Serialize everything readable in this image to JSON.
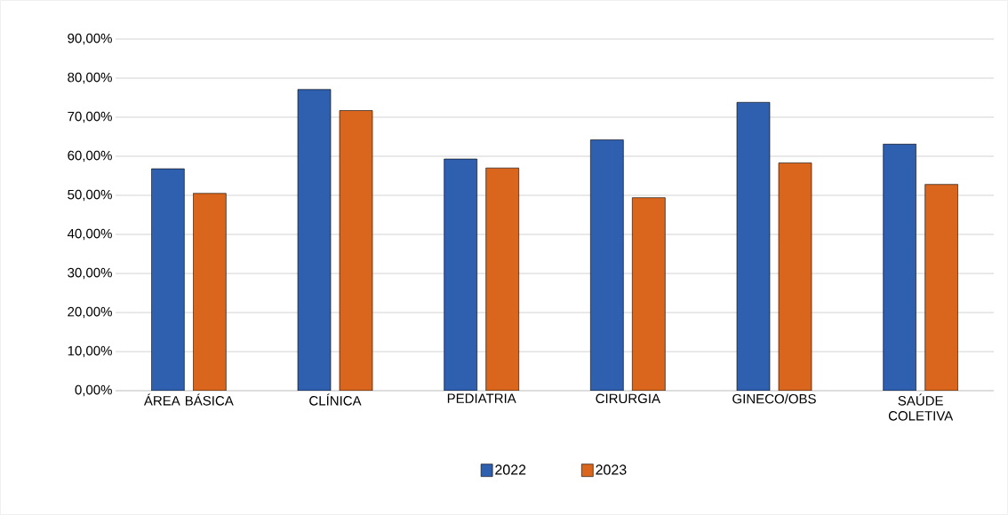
{
  "chart_data": {
    "type": "bar",
    "categories": [
      "ÁREA BÁSICA",
      "CLÍNICA",
      "PEDIATRIA",
      "CIRURGIA",
      "GINECO/OBS",
      "SAÚDE COLETIVA"
    ],
    "series": [
      {
        "name": "2022",
        "color": "#2f5faf",
        "values": [
          56.8,
          77.1,
          59.3,
          64.2,
          73.8,
          63.1
        ]
      },
      {
        "name": "2023",
        "color": "#d9661c",
        "values": [
          50.5,
          71.7,
          57.0,
          49.4,
          58.3,
          52.8
        ]
      }
    ],
    "ylim": [
      0,
      90
    ],
    "yticks": [
      {
        "value": 0,
        "label": "0,00%"
      },
      {
        "value": 10,
        "label": "10,00%"
      },
      {
        "value": 20,
        "label": "20,00%"
      },
      {
        "value": 30,
        "label": "30,00%"
      },
      {
        "value": 40,
        "label": "40,00%"
      },
      {
        "value": 50,
        "label": "50,00%"
      },
      {
        "value": 60,
        "label": "60,00%"
      },
      {
        "value": 70,
        "label": "70,00%"
      },
      {
        "value": 80,
        "label": "80,00%"
      },
      {
        "value": 90,
        "label": "90,00%"
      }
    ],
    "grid": "y",
    "legend": "bottom"
  }
}
